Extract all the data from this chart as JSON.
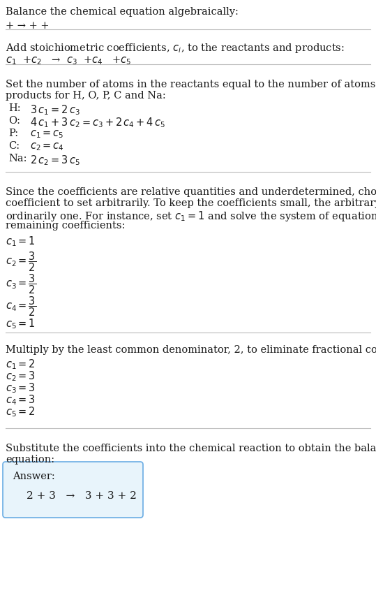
{
  "title": "Balance the chemical equation algebraically:",
  "sec1_eq": "+ → + +",
  "sec2_header": "Add stoichiometric coefficients, $c_i$, to the reactants and products:",
  "sec2_eq": "$c_1$  +$c_2$   →  $c_3$  +$c_4$   +$c_5$",
  "sec3_header_1": "Set the number of atoms in the reactants equal to the number of atoms in the",
  "sec3_header_2": "products for H, O, P, C and Na:",
  "sec3_eqs": [
    [
      "H:",
      "$3\\,c_1 = 2\\,c_3$"
    ],
    [
      "O:",
      "$4\\,c_1 + 3\\,c_2 = c_3 + 2\\,c_4 + 4\\,c_5$"
    ],
    [
      "P:",
      "$c_1 = c_5$"
    ],
    [
      "C:",
      "$c_2 = c_4$"
    ],
    [
      "Na:",
      "$2\\,c_2 = 3\\,c_5$"
    ]
  ],
  "sec4_header_1": "Since the coefficients are relative quantities and underdetermined, choose a",
  "sec4_header_2": "coefficient to set arbitrarily. To keep the coefficients small, the arbitrary value is",
  "sec4_header_3": "ordinarily one. For instance, set $c_1 = 1$ and solve the system of equations for the",
  "sec4_header_4": "remaining coefficients:",
  "sec4_eqs": [
    "$c_1 = 1$",
    "$c_2 = \\dfrac{3}{2}$",
    "$c_3 = \\dfrac{3}{2}$",
    "$c_4 = \\dfrac{3}{2}$",
    "$c_5 = 1$"
  ],
  "sec5_header": "Multiply by the least common denominator, 2, to eliminate fractional coefficients:",
  "sec5_eqs": [
    "$c_1 = 2$",
    "$c_2 = 3$",
    "$c_3 = 3$",
    "$c_4 = 3$",
    "$c_5 = 2$"
  ],
  "sec6_header_1": "Substitute the coefficients into the chemical reaction to obtain the balanced",
  "sec6_header_2": "equation:",
  "answer_label": "Answer:",
  "answer_eq": "2 + 3   →   3 + 3 + 2",
  "bg_color": "#ffffff",
  "text_color": "#1a1a1a",
  "line_color": "#bbbbbb",
  "answer_box_bg": "#e8f4fb",
  "answer_box_border": "#6aade4",
  "font_size": 10.5,
  "answer_indent": 30
}
